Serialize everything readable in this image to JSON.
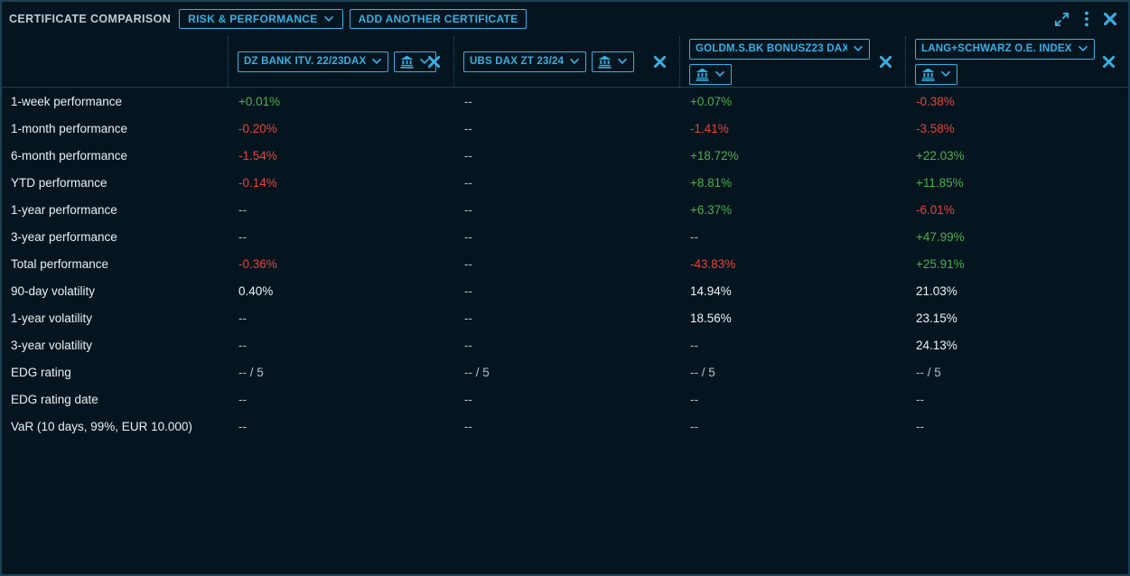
{
  "colors": {
    "accent": "#38b0e3",
    "positive": "#4caf50",
    "negative": "#e8433a",
    "neutral": "#edf3f5",
    "empty": "#b3c0c6"
  },
  "toolbar": {
    "title": "CERTIFICATE COMPARISON",
    "view_selector": "RISK & PERFORMANCE",
    "add_button": "ADD ANOTHER CERTIFICATE"
  },
  "certificates": [
    {
      "name": "DZ BANK ITV. 22/23DAX"
    },
    {
      "name": "UBS DAX ZT 23/24"
    },
    {
      "name": "GOLDM.S.BK BONUSZ23 DAX"
    },
    {
      "name": "LANG+SCHWARZ O.E. INDEX"
    }
  ],
  "rows": [
    {
      "label": "1-week performance",
      "values": [
        {
          "text": "+0.01%",
          "tone": "positive"
        },
        {
          "text": "--",
          "tone": "empty"
        },
        {
          "text": "+0.07%",
          "tone": "positive"
        },
        {
          "text": "-0.38%",
          "tone": "negative"
        }
      ]
    },
    {
      "label": "1-month performance",
      "values": [
        {
          "text": "-0.20%",
          "tone": "negative"
        },
        {
          "text": "--",
          "tone": "empty"
        },
        {
          "text": "-1.41%",
          "tone": "negative"
        },
        {
          "text": "-3.58%",
          "tone": "negative"
        }
      ]
    },
    {
      "label": "6-month performance",
      "values": [
        {
          "text": "-1.54%",
          "tone": "negative"
        },
        {
          "text": "--",
          "tone": "empty"
        },
        {
          "text": "+18.72%",
          "tone": "positive"
        },
        {
          "text": "+22.03%",
          "tone": "positive"
        }
      ]
    },
    {
      "label": "YTD performance",
      "values": [
        {
          "text": "-0.14%",
          "tone": "negative"
        },
        {
          "text": "--",
          "tone": "empty"
        },
        {
          "text": "+8.81%",
          "tone": "positive"
        },
        {
          "text": "+11.85%",
          "tone": "positive"
        }
      ]
    },
    {
      "label": "1-year performance",
      "values": [
        {
          "text": "--",
          "tone": "empty"
        },
        {
          "text": "--",
          "tone": "empty"
        },
        {
          "text": "+6.37%",
          "tone": "positive"
        },
        {
          "text": "-6.01%",
          "tone": "negative"
        }
      ]
    },
    {
      "label": "3-year performance",
      "values": [
        {
          "text": "--",
          "tone": "empty"
        },
        {
          "text": "--",
          "tone": "empty"
        },
        {
          "text": "--",
          "tone": "empty"
        },
        {
          "text": "+47.99%",
          "tone": "positive"
        }
      ]
    },
    {
      "label": "Total performance",
      "values": [
        {
          "text": "-0.36%",
          "tone": "negative"
        },
        {
          "text": "--",
          "tone": "empty"
        },
        {
          "text": "-43.83%",
          "tone": "negative"
        },
        {
          "text": "+25.91%",
          "tone": "positive"
        }
      ]
    },
    {
      "label": "90-day volatility",
      "values": [
        {
          "text": "0.40%",
          "tone": "neutral"
        },
        {
          "text": "--",
          "tone": "empty"
        },
        {
          "text": "14.94%",
          "tone": "neutral"
        },
        {
          "text": "21.03%",
          "tone": "neutral"
        }
      ]
    },
    {
      "label": "1-year volatility",
      "values": [
        {
          "text": "--",
          "tone": "empty"
        },
        {
          "text": "--",
          "tone": "empty"
        },
        {
          "text": "18.56%",
          "tone": "neutral"
        },
        {
          "text": "23.15%",
          "tone": "neutral"
        }
      ]
    },
    {
      "label": "3-year volatility",
      "values": [
        {
          "text": "--",
          "tone": "empty"
        },
        {
          "text": "--",
          "tone": "empty"
        },
        {
          "text": "--",
          "tone": "empty"
        },
        {
          "text": "24.13%",
          "tone": "neutral"
        }
      ]
    },
    {
      "label": "EDG rating",
      "values": [
        {
          "text": "-- / 5",
          "tone": "empty"
        },
        {
          "text": "-- / 5",
          "tone": "empty"
        },
        {
          "text": "-- / 5",
          "tone": "empty"
        },
        {
          "text": "-- / 5",
          "tone": "empty"
        }
      ]
    },
    {
      "label": "EDG rating date",
      "values": [
        {
          "text": "--",
          "tone": "empty"
        },
        {
          "text": "--",
          "tone": "empty"
        },
        {
          "text": "--",
          "tone": "empty"
        },
        {
          "text": "--",
          "tone": "empty"
        }
      ]
    },
    {
      "label": "VaR (10 days, 99%, EUR 10.000)",
      "values": [
        {
          "text": "--",
          "tone": "empty"
        },
        {
          "text": "--",
          "tone": "empty"
        },
        {
          "text": "--",
          "tone": "empty"
        },
        {
          "text": "--",
          "tone": "empty"
        }
      ]
    }
  ]
}
